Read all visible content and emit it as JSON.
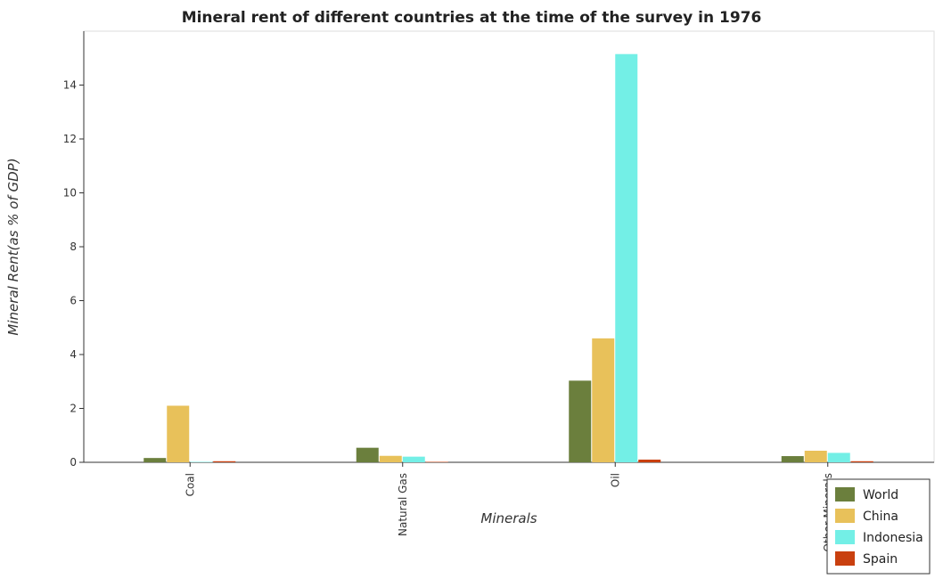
{
  "chart_data": {
    "type": "bar",
    "title": "Mineral rent of different countries at the time of the survey in 1976",
    "xlabel": "Minerals",
    "ylabel": "Mineral Rent(as % of GDP)",
    "categories": [
      "Coal",
      "Natural Gas",
      "Oil",
      "Other Minerals"
    ],
    "ylim": [
      0,
      16
    ],
    "yticks": [
      "0",
      "2",
      "4",
      "6",
      "8",
      "10",
      "12",
      "14"
    ],
    "series": [
      {
        "name": "World",
        "color": "#6b7f3d",
        "values": [
          0.16,
          0.54,
          3.03,
          0.23
        ]
      },
      {
        "name": "China",
        "color": "#e8c15a",
        "values": [
          2.1,
          0.24,
          4.6,
          0.43
        ]
      },
      {
        "name": "Indonesia",
        "color": "#73efe6",
        "values": [
          0.01,
          0.21,
          15.15,
          0.35
        ]
      },
      {
        "name": "Spain",
        "color": "#c9400f",
        "values": [
          0.04,
          0.01,
          0.1,
          0.04
        ]
      }
    ],
    "legend_position": "bottom-right",
    "grid": false
  }
}
